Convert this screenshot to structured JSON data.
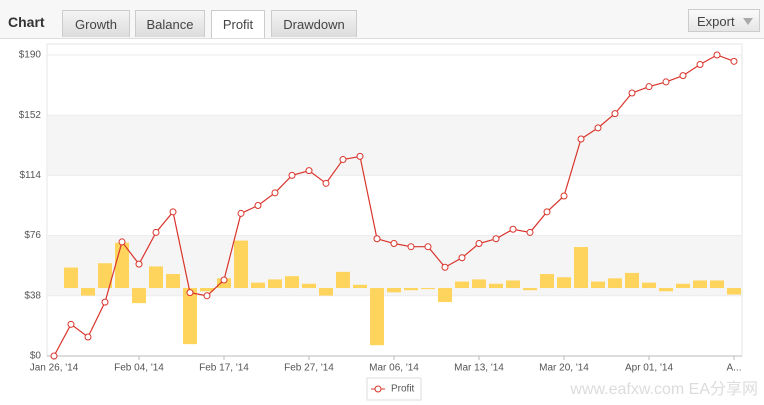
{
  "toolbar": {
    "label": "Chart",
    "tabs": [
      "Growth",
      "Balance",
      "Profit",
      "Drawdown"
    ],
    "active": 2,
    "export": "Export"
  },
  "chart_data": {
    "type": "line",
    "categories": [
      "Jan 26, '14",
      null,
      null,
      null,
      null,
      "Feb 04, '14",
      null,
      null,
      null,
      null,
      "Feb 17, '14",
      null,
      null,
      null,
      null,
      "Feb 27, '14",
      null,
      null,
      null,
      null,
      "Mar 06, '14",
      null,
      null,
      null,
      null,
      "Mar 13, '14",
      null,
      null,
      null,
      null,
      "Mar 20, '14",
      null,
      null,
      null,
      null,
      "Apr 01, '14",
      null,
      null,
      null,
      null,
      "A..."
    ],
    "series": [
      {
        "type": "bar",
        "axis": "y2",
        "color": "#ffd45c",
        "values": [
          null,
          19,
          -7,
          23,
          42,
          -14,
          20,
          13,
          -52,
          -3,
          9,
          44,
          5,
          8,
          11,
          4,
          -7,
          15,
          3,
          -53,
          -4,
          -2,
          -1,
          -13,
          6,
          8,
          4,
          7,
          -2,
          13,
          10,
          38,
          6,
          9,
          14,
          5,
          -3,
          4,
          7,
          7,
          -6
        ]
      },
      {
        "type": "line",
        "name": "Profit",
        "color": "#d9342b",
        "values": [
          0,
          20,
          12,
          34,
          72,
          58,
          78,
          91,
          40,
          38,
          48,
          90,
          95,
          103,
          114,
          117,
          109,
          124,
          126,
          74,
          71,
          69,
          69,
          56,
          62,
          71,
          74,
          80,
          78,
          91,
          101,
          137,
          144,
          153,
          166,
          170,
          173,
          177,
          184,
          190,
          186
        ]
      }
    ],
    "ylim": [
      0,
      190
    ],
    "yticks": [
      {
        "value": 0,
        "label": "$0"
      },
      {
        "value": 38,
        "label": "$38"
      },
      {
        "value": 76,
        "label": "$76"
      },
      {
        "value": 114,
        "label": "$114"
      },
      {
        "value": 152,
        "label": "$152"
      },
      {
        "value": 190,
        "label": "$190"
      }
    ],
    "y2lim": [
      -63,
      216
    ],
    "bands": true,
    "legend": "bottom"
  },
  "watermark": "www.eafxw.com   EA分享网"
}
